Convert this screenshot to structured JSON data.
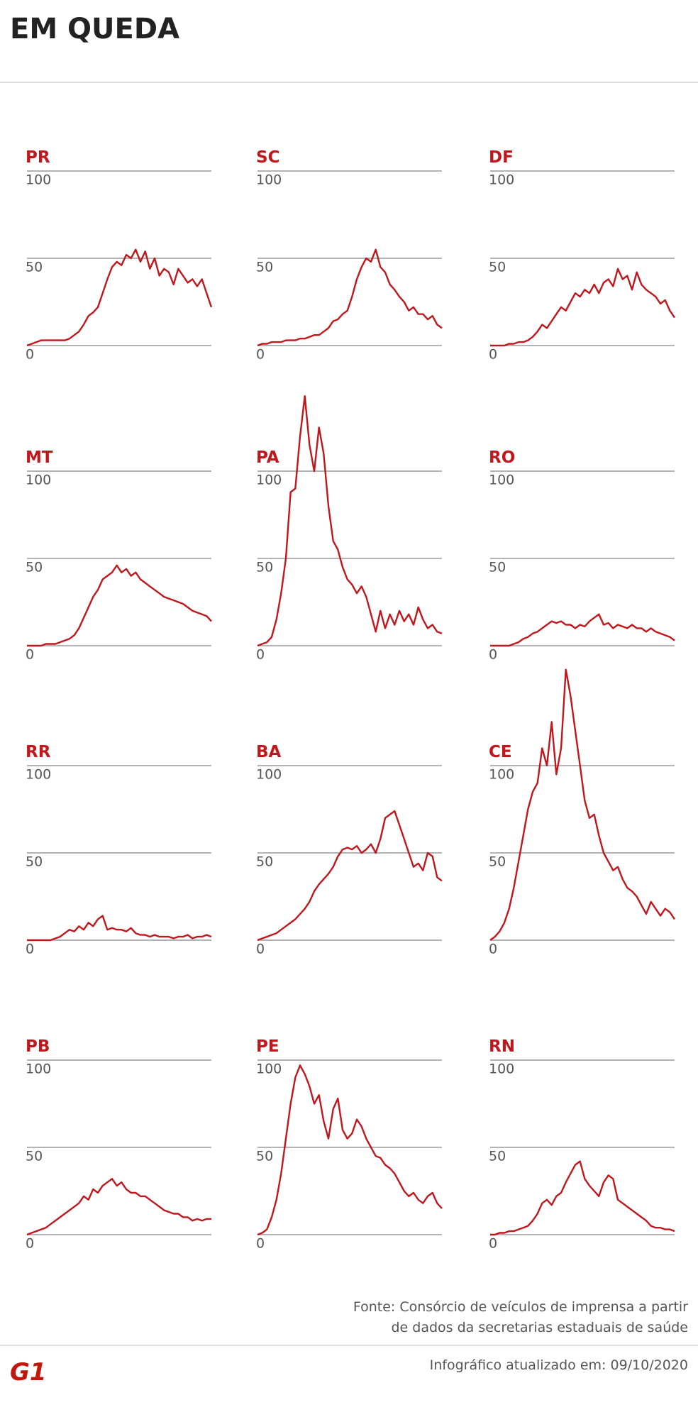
{
  "header": {
    "title": "EM QUEDA"
  },
  "chart_data": [
    {
      "type": "line",
      "title": "PR",
      "color": "#c0171d",
      "ylim": [
        0,
        100
      ],
      "yticks": [
        0,
        50,
        100
      ],
      "grid": true,
      "values": [
        0,
        1,
        2,
        3,
        3,
        3,
        3,
        3,
        3,
        4,
        6,
        8,
        12,
        17,
        19,
        22,
        30,
        38,
        45,
        48,
        46,
        52,
        50,
        55,
        48,
        54,
        44,
        50,
        40,
        44,
        42,
        35,
        44,
        40,
        36,
        38,
        34,
        38,
        30,
        22
      ]
    },
    {
      "type": "line",
      "title": "SC",
      "color": "#c0171d",
      "ylim": [
        0,
        100
      ],
      "yticks": [
        0,
        50,
        100
      ],
      "grid": true,
      "values": [
        0,
        1,
        1,
        2,
        2,
        2,
        3,
        3,
        3,
        4,
        4,
        5,
        6,
        6,
        8,
        10,
        14,
        15,
        18,
        20,
        28,
        38,
        45,
        50,
        48,
        55,
        45,
        42,
        35,
        32,
        28,
        25,
        20,
        22,
        18,
        18,
        15,
        17,
        12,
        10
      ]
    },
    {
      "type": "line",
      "title": "DF",
      "color": "#c0171d",
      "ylim": [
        0,
        100
      ],
      "yticks": [
        0,
        50,
        100
      ],
      "grid": true,
      "values": [
        0,
        0,
        0,
        0,
        1,
        1,
        2,
        2,
        3,
        5,
        8,
        12,
        10,
        14,
        18,
        22,
        20,
        25,
        30,
        28,
        32,
        30,
        35,
        30,
        36,
        38,
        34,
        44,
        38,
        40,
        32,
        42,
        35,
        32,
        30,
        28,
        24,
        26,
        20,
        16
      ]
    },
    {
      "type": "line",
      "title": "MT",
      "color": "#c0171d",
      "ylim": [
        0,
        100
      ],
      "yticks": [
        0,
        50,
        100
      ],
      "grid": true,
      "values": [
        0,
        0,
        0,
        0,
        1,
        1,
        1,
        2,
        3,
        4,
        6,
        10,
        16,
        22,
        28,
        32,
        38,
        40,
        42,
        46,
        42,
        44,
        40,
        42,
        38,
        36,
        34,
        32,
        30,
        28,
        27,
        26,
        25,
        24,
        22,
        20,
        19,
        18,
        17,
        14
      ]
    },
    {
      "type": "line",
      "title": "PA",
      "color": "#c0171d",
      "ylim": [
        0,
        100
      ],
      "yticks": [
        0,
        50,
        100
      ],
      "grid": true,
      "values": [
        0,
        1,
        2,
        5,
        15,
        30,
        50,
        88,
        90,
        120,
        143,
        115,
        100,
        125,
        110,
        80,
        60,
        55,
        45,
        38,
        35,
        30,
        34,
        28,
        18,
        8,
        20,
        10,
        18,
        12,
        20,
        14,
        18,
        12,
        22,
        15,
        10,
        12,
        8,
        7
      ]
    },
    {
      "type": "line",
      "title": "RO",
      "color": "#c0171d",
      "ylim": [
        0,
        100
      ],
      "yticks": [
        0,
        50,
        100
      ],
      "grid": true,
      "values": [
        0,
        0,
        0,
        0,
        0,
        1,
        2,
        4,
        5,
        7,
        8,
        10,
        12,
        14,
        13,
        14,
        12,
        12,
        10,
        12,
        11,
        14,
        16,
        18,
        12,
        13,
        10,
        12,
        11,
        10,
        12,
        10,
        10,
        8,
        10,
        8,
        7,
        6,
        5,
        3
      ]
    },
    {
      "type": "line",
      "title": "RR",
      "color": "#c0171d",
      "ylim": [
        0,
        100
      ],
      "yticks": [
        0,
        50,
        100
      ],
      "grid": true,
      "values": [
        0,
        0,
        0,
        0,
        0,
        0,
        1,
        2,
        4,
        6,
        5,
        8,
        6,
        10,
        8,
        12,
        14,
        6,
        7,
        6,
        6,
        5,
        7,
        4,
        3,
        3,
        2,
        3,
        2,
        2,
        2,
        1,
        2,
        2,
        3,
        1,
        2,
        2,
        3,
        2
      ]
    },
    {
      "type": "line",
      "title": "BA",
      "color": "#c0171d",
      "ylim": [
        0,
        100
      ],
      "yticks": [
        0,
        50,
        100
      ],
      "grid": true,
      "values": [
        0,
        1,
        2,
        3,
        4,
        6,
        8,
        10,
        12,
        15,
        18,
        22,
        28,
        32,
        35,
        38,
        42,
        48,
        52,
        53,
        52,
        54,
        50,
        52,
        55,
        50,
        58,
        70,
        72,
        74,
        66,
        58,
        50,
        42,
        44,
        40,
        50,
        48,
        36,
        34
      ]
    },
    {
      "type": "line",
      "title": "CE",
      "color": "#c0171d",
      "ylim": [
        0,
        100
      ],
      "yticks": [
        0,
        50,
        100
      ],
      "grid": true,
      "values": [
        0,
        2,
        5,
        10,
        18,
        30,
        45,
        60,
        75,
        85,
        90,
        110,
        100,
        125,
        95,
        110,
        155,
        140,
        120,
        100,
        80,
        70,
        72,
        60,
        50,
        45,
        40,
        42,
        35,
        30,
        28,
        25,
        20,
        15,
        22,
        18,
        14,
        18,
        16,
        12
      ]
    },
    {
      "type": "line",
      "title": "PB",
      "color": "#c0171d",
      "ylim": [
        0,
        100
      ],
      "yticks": [
        0,
        50,
        100
      ],
      "grid": true,
      "values": [
        0,
        1,
        2,
        3,
        4,
        6,
        8,
        10,
        12,
        14,
        16,
        18,
        22,
        20,
        26,
        24,
        28,
        30,
        32,
        28,
        30,
        26,
        24,
        24,
        22,
        22,
        20,
        18,
        16,
        14,
        13,
        12,
        12,
        10,
        10,
        8,
        9,
        8,
        9,
        9
      ]
    },
    {
      "type": "line",
      "title": "PE",
      "color": "#c0171d",
      "ylim": [
        0,
        100
      ],
      "yticks": [
        0,
        50,
        100
      ],
      "grid": true,
      "values": [
        0,
        1,
        3,
        10,
        20,
        35,
        55,
        75,
        90,
        97,
        92,
        85,
        75,
        80,
        65,
        55,
        72,
        78,
        60,
        55,
        58,
        66,
        62,
        55,
        50,
        45,
        44,
        40,
        38,
        35,
        30,
        25,
        22,
        24,
        20,
        18,
        22,
        24,
        18,
        15
      ]
    },
    {
      "type": "line",
      "title": "RN",
      "color": "#c0171d",
      "ylim": [
        0,
        100
      ],
      "yticks": [
        0,
        50,
        100
      ],
      "grid": true,
      "values": [
        0,
        0,
        1,
        1,
        2,
        2,
        3,
        4,
        5,
        8,
        12,
        18,
        20,
        17,
        22,
        24,
        30,
        35,
        40,
        42,
        32,
        28,
        25,
        22,
        30,
        34,
        32,
        20,
        18,
        16,
        14,
        12,
        10,
        8,
        5,
        4,
        4,
        3,
        3,
        2
      ]
    }
  ],
  "footer": {
    "source": [
      "Fonte: Consórcio de veículos de imprensa a partir",
      "de dados da secretarias estaduais de saúde"
    ],
    "logo": "G1",
    "updated": "Infográfico atualizado em: 09/10/2020"
  }
}
